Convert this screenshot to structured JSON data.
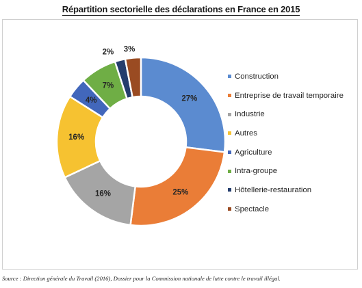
{
  "chart_data": {
    "type": "pie",
    "title": "Répartition sectorielle des déclarations en France en 2015",
    "legend_position": "right",
    "slices": [
      {
        "name": "Construction",
        "value": 27,
        "label": "27%",
        "color": "#5b8bd0"
      },
      {
        "name": "Entreprise de travail temporaire",
        "value": 25,
        "label": "25%",
        "color": "#ea7d37"
      },
      {
        "name": "Industrie",
        "value": 16,
        "label": "16%",
        "color": "#a5a5a5"
      },
      {
        "name": "Autres",
        "value": 16,
        "label": "16%",
        "color": "#f6c231"
      },
      {
        "name": "Agriculture",
        "value": 4,
        "label": "4%",
        "color": "#4267bb"
      },
      {
        "name": "Intra-groupe",
        "value": 7,
        "label": "7%",
        "color": "#6fae45"
      },
      {
        "name": "Hôtellerie-restauration",
        "value": 2,
        "label": "2%",
        "color": "#243d6d"
      },
      {
        "name": "Spectacle",
        "value": 3,
        "label": "3%",
        "color": "#9a4b22"
      }
    ]
  },
  "source": "Source : Direction générale du Travail (2016), Dossier pour la Commission nationale de lutte contre le travail illégal."
}
